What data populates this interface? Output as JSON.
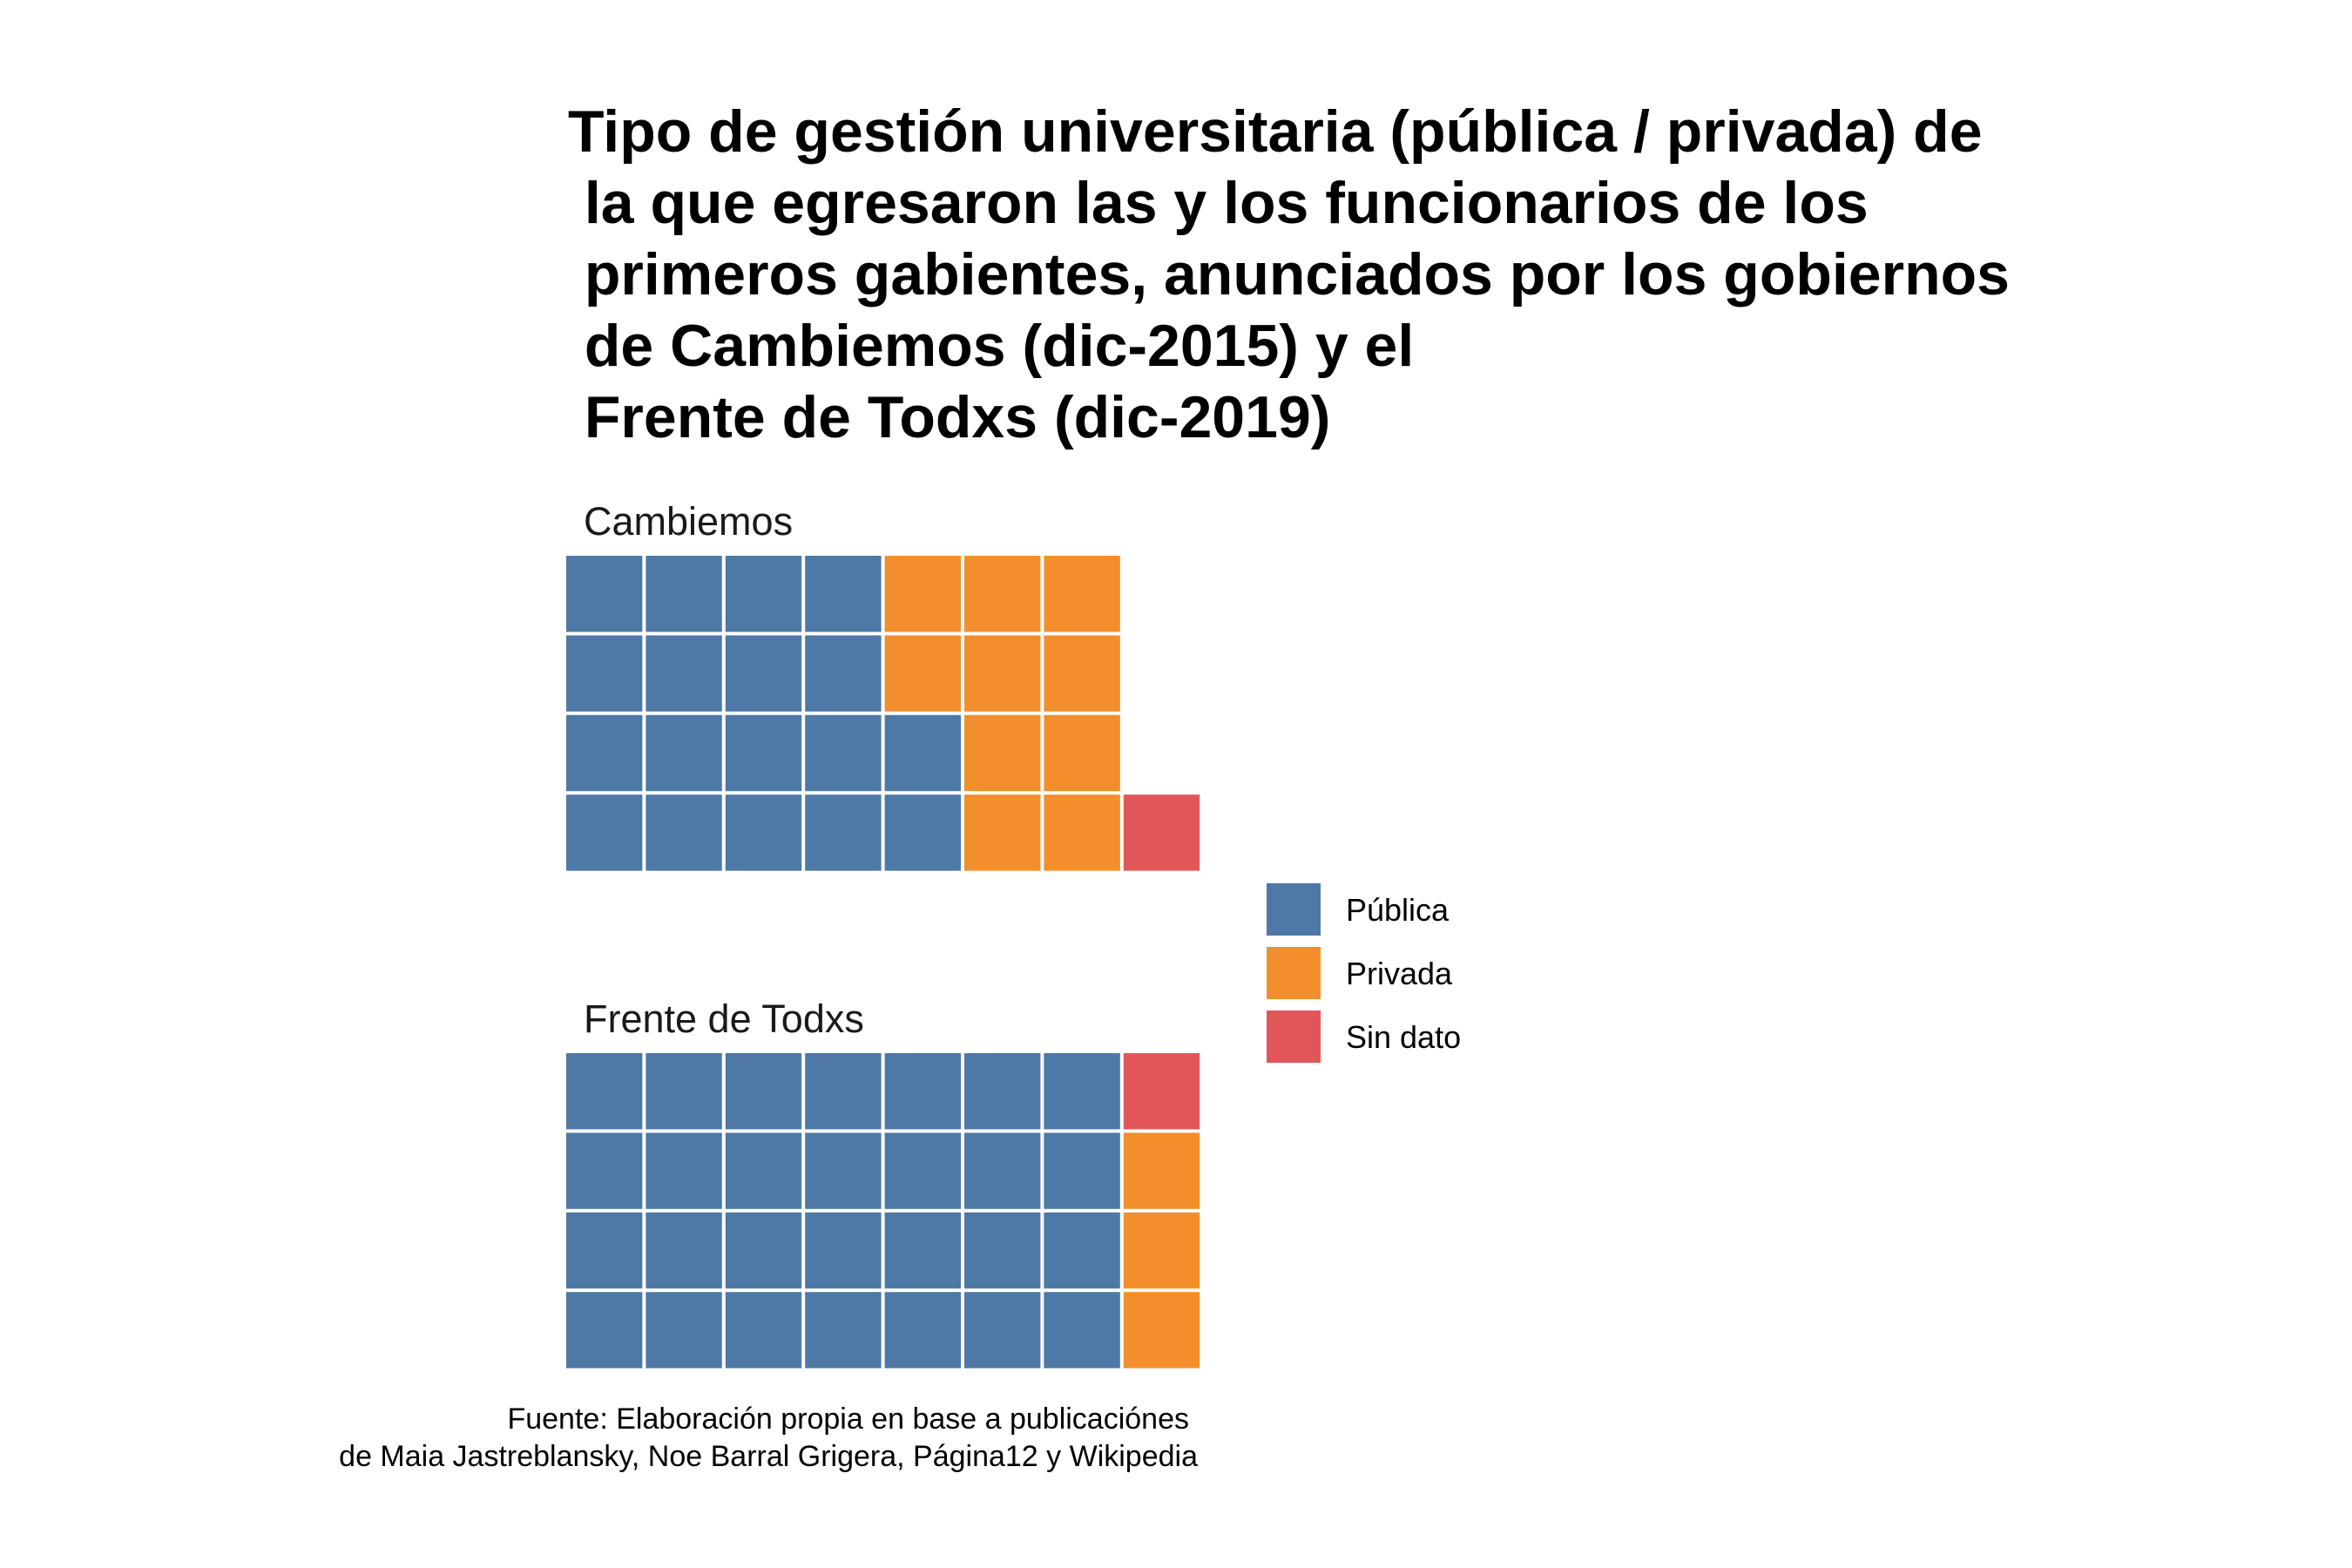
{
  "title_lines": [
    "Tipo de gestión universitaria (pública / privada) de",
    " la que egresaron las y los funcionarios de los",
    " primeros gabientes, anunciados por los gobiernos",
    " de Cambiemos (dic-2015) y el",
    " Frente de Todxs (dic-2019)"
  ],
  "caption_lines": [
    "Fuente: Elaboración propia en base a publicaciónes",
    "de Maia Jastreblansky, Noe Barral Grigera, Página12 y Wikipedia"
  ],
  "legend": [
    {
      "label": "Pública",
      "color": "#4E79A7"
    },
    {
      "label": "Privada",
      "color": "#F28E2B"
    },
    {
      "label": "Sin dato",
      "color": "#E15759"
    }
  ],
  "chart_data": {
    "type": "waffle",
    "rows": 4,
    "fill_order": "column-wise, bottom to top",
    "categories": [
      "Pública",
      "Privada",
      "Sin dato"
    ],
    "panels": [
      {
        "name": "Cambiemos",
        "values": [
          18,
          10,
          1
        ]
      },
      {
        "name": "Frente de Todxs",
        "values": [
          28,
          3,
          1
        ]
      }
    ]
  }
}
